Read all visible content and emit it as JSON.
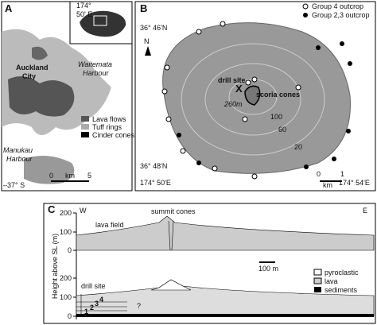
{
  "panel_a": {
    "label": "A",
    "longitude": "174°",
    "longitude_min": "50' E",
    "latitude": "–37° S",
    "harbour_north": [
      "Waitemata",
      "Harbour"
    ],
    "city": [
      "Auckland",
      "City"
    ],
    "harbour_south": [
      "Manukau",
      "Harbour"
    ],
    "legend": [
      "Lava flows",
      "Tuff rings",
      "Cinder cones"
    ],
    "scale": [
      "0",
      "km",
      "5"
    ]
  },
  "panel_b": {
    "label": "B",
    "north": "N",
    "lat_top": "36° 46'N",
    "lat_bottom": "36° 48'N",
    "lon_left": "174° 50'E",
    "lon_right": "174° 54'E",
    "legend": [
      "Group 4 outcrop",
      "Group 2,3 outcrop"
    ],
    "drill_marker": "X",
    "drill_site": "drill site",
    "scoria_cones": "scoria cones",
    "contours": [
      "260m",
      "100",
      "60",
      "20"
    ],
    "scale": [
      "0",
      "km",
      "1"
    ]
  },
  "panel_c": {
    "label": "C",
    "west": "W",
    "east": "E",
    "summit_cones": "summit cones",
    "lava_field": "lava field",
    "y_axis_label": "Height above SL (m)",
    "yticks_top": [
      "200",
      "100",
      "0"
    ],
    "yticks_bottom": [
      "200",
      "100",
      "0"
    ],
    "scale": "100 m",
    "drill_site": "drill site",
    "units": [
      "1",
      "2",
      "3",
      "4"
    ],
    "unknown": "?",
    "legend": [
      "pyroclastic",
      "lava",
      "sediments"
    ]
  }
}
